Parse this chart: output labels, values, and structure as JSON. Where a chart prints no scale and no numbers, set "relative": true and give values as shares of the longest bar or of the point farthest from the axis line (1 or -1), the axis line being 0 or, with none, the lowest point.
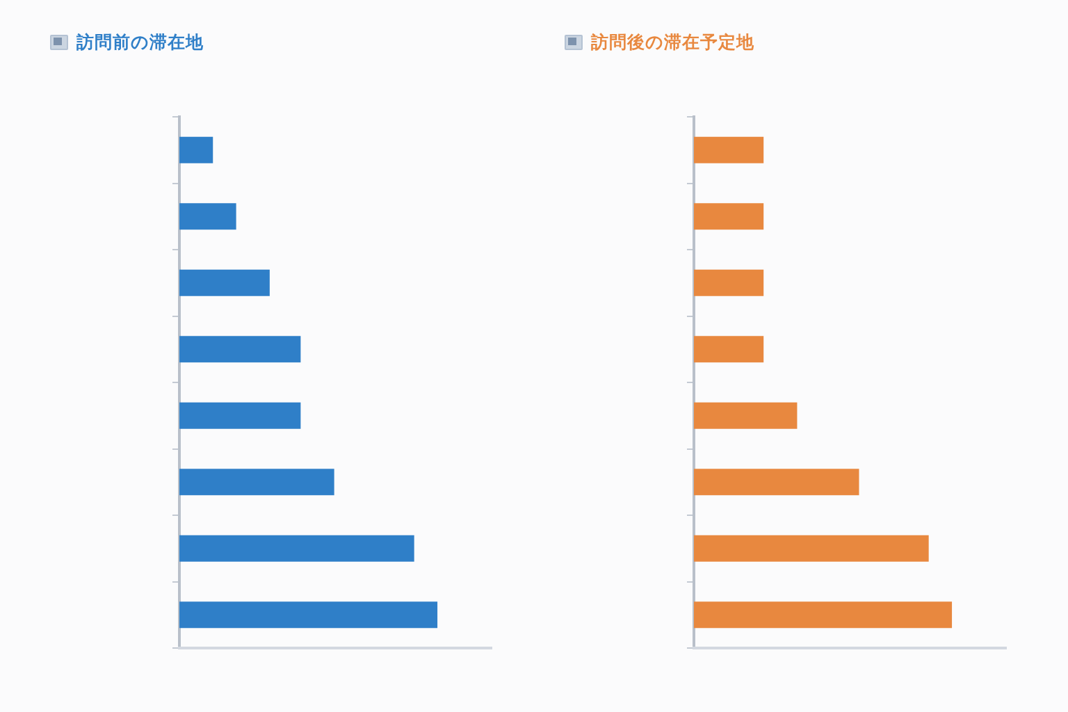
{
  "chart_data": [
    {
      "type": "bar",
      "orientation": "horizontal",
      "relative": true,
      "title": "訪問前の滞在地",
      "categories": [
        null,
        null,
        null,
        null,
        null,
        null,
        null,
        null
      ],
      "values": [
        0.13,
        0.22,
        0.35,
        0.47,
        0.47,
        0.6,
        0.91,
        1
      ],
      "color": "#2f7fc8"
    },
    {
      "type": "bar",
      "orientation": "horizontal",
      "relative": true,
      "title": "訪問後の滞在予定地",
      "categories": [
        null,
        null,
        null,
        null,
        null,
        null,
        null,
        null
      ],
      "values": [
        0.27,
        0.27,
        0.27,
        0.27,
        0.4,
        0.64,
        0.91,
        1
      ],
      "color": "#e8883f"
    }
  ]
}
